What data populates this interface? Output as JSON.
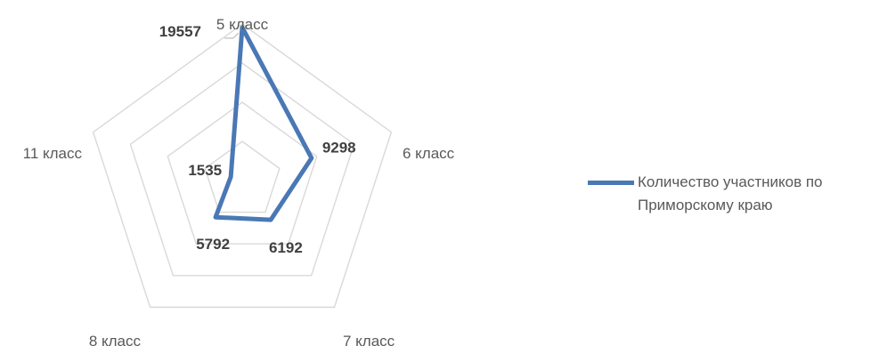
{
  "chart_data": {
    "type": "radar",
    "categories": [
      "5 класс",
      "6 класс",
      "7 класс",
      "8 класс",
      "11 класс"
    ],
    "series": [
      {
        "name": "Количество участников по Приморскому краю",
        "values": [
          19557,
          9298,
          6192,
          5792,
          1535
        ],
        "color": "#4a78b5"
      }
    ],
    "range": [
      0,
      20000
    ],
    "grid_rings": 4,
    "grid": true,
    "grid_color": "#d9d9d9",
    "legend": "right",
    "title": "",
    "data_labels": [
      "19557",
      "9298",
      "6192",
      "5792",
      "1535"
    ]
  }
}
